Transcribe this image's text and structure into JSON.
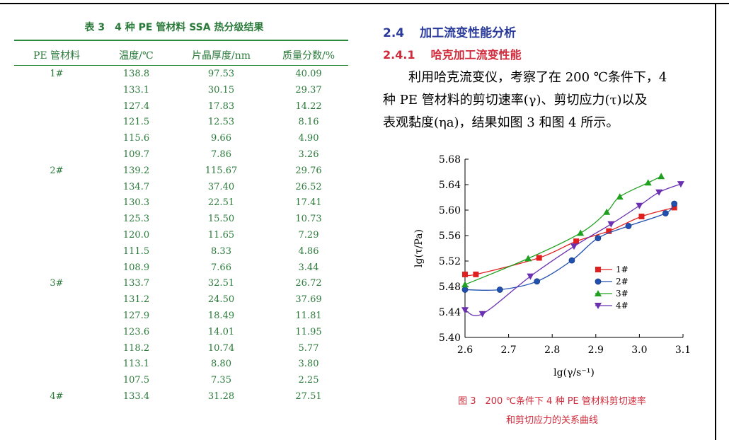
{
  "table": {
    "caption": "表 3　4 种 PE 管材料 SSA 热分级结果",
    "headers": [
      "PE 管材料",
      "温度/℃",
      "片晶厚度/nm",
      "质量分数/%"
    ],
    "rows": [
      [
        "1#",
        "138.8",
        "97.53",
        "40.09"
      ],
      [
        "",
        "133.1",
        "30.15",
        "29.37"
      ],
      [
        "",
        "127.4",
        "17.83",
        "14.22"
      ],
      [
        "",
        "121.5",
        "12.53",
        "8.16"
      ],
      [
        "",
        "115.6",
        "9.66",
        "4.90"
      ],
      [
        "",
        "109.7",
        "7.86",
        "3.26"
      ],
      [
        "2#",
        "139.2",
        "115.67",
        "29.76"
      ],
      [
        "",
        "134.7",
        "37.40",
        "26.52"
      ],
      [
        "",
        "130.3",
        "22.51",
        "17.41"
      ],
      [
        "",
        "125.3",
        "15.50",
        "10.73"
      ],
      [
        "",
        "120.0",
        "11.65",
        "7.29"
      ],
      [
        "",
        "111.5",
        "8.33",
        "4.86"
      ],
      [
        "",
        "108.9",
        "7.66",
        "3.44"
      ],
      [
        "3#",
        "133.7",
        "32.51",
        "26.72"
      ],
      [
        "",
        "131.2",
        "24.50",
        "37.69"
      ],
      [
        "",
        "127.9",
        "18.49",
        "11.81"
      ],
      [
        "",
        "123.6",
        "14.01",
        "11.95"
      ],
      [
        "",
        "118.2",
        "10.74",
        "5.77"
      ],
      [
        "",
        "113.1",
        "8.80",
        "3.80"
      ],
      [
        "",
        "107.5",
        "7.35",
        "2.25"
      ],
      [
        "4#",
        "133.4",
        "31.28",
        "27.51"
      ]
    ]
  },
  "section": {
    "number": "2.4",
    "title": "加工流变性能分析"
  },
  "subsection": {
    "number": "2.4.1",
    "title": "哈克加工流变性能"
  },
  "paragraph": [
    "利用哈克流变仪，考察了在 200 ℃条件下，4",
    "种 PE 管材料的剪切速率(γ)、剪切应力(τ)以及",
    "表观黏度(ηa)，结果如图 3 和图 4 所示。"
  ],
  "figure_caption": [
    "图 3　200 ℃条件下 4 种 PE 管材料剪切速率",
    "和剪切应力的关系曲线"
  ],
  "chart_data": {
    "type": "line",
    "xlabel": "lg(γ/s⁻¹)",
    "ylabel": "lg(τ/Pa)",
    "xlim": [
      2.6,
      3.1
    ],
    "ylim": [
      5.4,
      5.68
    ],
    "xticks": [
      "2.6",
      "2.7",
      "2.8",
      "2.9",
      "3.0",
      "3.1"
    ],
    "yticks": [
      "5.40",
      "5.44",
      "5.48",
      "5.52",
      "5.56",
      "5.60",
      "5.64",
      "5.68"
    ],
    "legend_position": "right",
    "series": [
      {
        "name": "1#",
        "color": "#e02020",
        "marker": "square",
        "x": [
          2.6,
          2.625,
          2.77,
          2.855,
          2.93,
          3.005,
          3.08
        ],
        "y": [
          5.499,
          5.499,
          5.525,
          5.551,
          5.567,
          5.59,
          5.604
        ]
      },
      {
        "name": "2#",
        "color": "#2050b0",
        "marker": "circle",
        "x": [
          2.6,
          2.68,
          2.765,
          2.845,
          2.905,
          2.975,
          3.06,
          3.08
        ],
        "y": [
          5.475,
          5.475,
          5.488,
          5.521,
          5.556,
          5.575,
          5.595,
          5.61
        ]
      },
      {
        "name": "3#",
        "color": "#20a020",
        "marker": "triangle-up",
        "x": [
          2.6,
          2.745,
          2.865,
          2.925,
          2.955,
          3.02,
          3.05
        ],
        "y": [
          5.483,
          5.524,
          5.564,
          5.597,
          5.621,
          5.643,
          5.653
        ]
      },
      {
        "name": "4#",
        "color": "#6a30b0",
        "marker": "triangle-down",
        "x": [
          2.6,
          2.64,
          2.75,
          2.85,
          2.935,
          3.0,
          3.045,
          3.095
        ],
        "y": [
          5.443,
          5.437,
          5.496,
          5.543,
          5.578,
          5.607,
          5.628,
          5.641
        ]
      }
    ]
  }
}
